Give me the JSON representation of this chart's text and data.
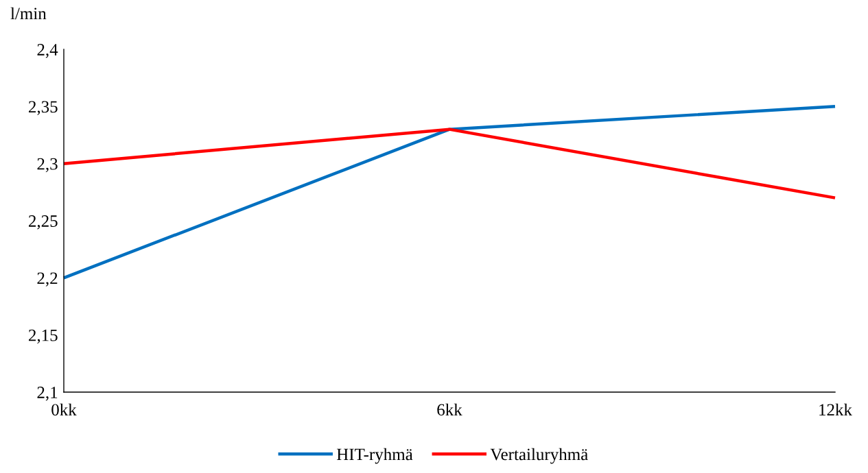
{
  "chart_data": {
    "type": "line",
    "ylabel": "l/min",
    "categories": [
      "0kk",
      "6kk",
      "12kk"
    ],
    "series": [
      {
        "name": "HIT-ryhmä",
        "color": "#0070c0",
        "values": [
          2.2,
          2.33,
          2.35
        ]
      },
      {
        "name": "Vertailuryhmä",
        "color": "#ff0000",
        "values": [
          2.3,
          2.33,
          2.27
        ]
      }
    ],
    "ylim": [
      2.1,
      2.4
    ],
    "yticks": [
      {
        "value": 2.1,
        "label": "2,1"
      },
      {
        "value": 2.15,
        "label": "2,15"
      },
      {
        "value": 2.2,
        "label": "2,2"
      },
      {
        "value": 2.25,
        "label": "2,25"
      },
      {
        "value": 2.3,
        "label": "2,3"
      },
      {
        "value": 2.35,
        "label": "2,35"
      },
      {
        "value": 2.4,
        "label": "2,4"
      }
    ],
    "grid": false,
    "legend": "bottom",
    "marker": "none",
    "line_style": "solid"
  }
}
